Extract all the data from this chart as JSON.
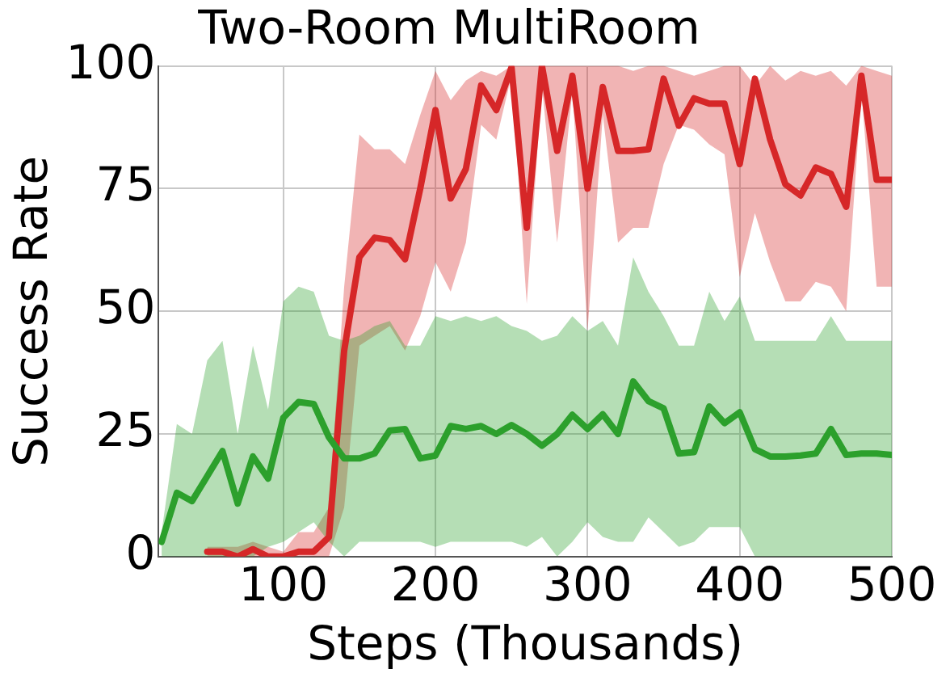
{
  "chart_data": {
    "type": "line",
    "title": "Two-Room MultiRoom",
    "xlabel": "Steps (Thousands)",
    "ylabel": "Success Rate",
    "xlim": [
      18,
      500
    ],
    "xticks": [
      100,
      200,
      300,
      400,
      500
    ],
    "ylim": [
      0,
      100
    ],
    "yticks": [
      0,
      25,
      50,
      75,
      100
    ],
    "grid": true,
    "legend": false,
    "marker": "none",
    "series": [
      {
        "color": "#2ca02c",
        "x": [
          20,
          30,
          40,
          50,
          60,
          70,
          80,
          90,
          100,
          110,
          120,
          130,
          140,
          150,
          160,
          170,
          180,
          190,
          200,
          210,
          220,
          230,
          240,
          250,
          260,
          270,
          280,
          290,
          300,
          310,
          320,
          330,
          340,
          350,
          360,
          370,
          380,
          390,
          400,
          410,
          420,
          430,
          440,
          450,
          460,
          470,
          480,
          490,
          500
        ],
        "values": [
          3,
          13,
          11.3,
          16.4,
          21.5,
          10.8,
          20.4,
          15.9,
          28.3,
          31.5,
          31.1,
          24.3,
          20,
          20,
          21,
          25.7,
          26,
          20,
          20.6,
          26.6,
          26,
          26.6,
          25,
          26.8,
          25,
          22.6,
          25,
          28.9,
          26,
          29,
          25,
          35.7,
          31.7,
          30.2,
          21,
          21.3,
          30.6,
          27.2,
          29.4,
          21.9,
          20.4,
          20.4,
          20.6,
          21,
          26,
          20.7,
          21,
          21,
          20.7
        ],
        "lower": [
          0,
          0,
          0,
          0,
          0,
          0,
          0,
          2,
          3,
          5,
          7,
          3,
          0,
          3,
          3,
          3,
          3,
          3,
          2,
          3,
          3,
          3,
          3,
          3,
          2,
          4,
          0,
          3,
          7,
          4,
          3,
          3,
          8,
          5,
          2,
          3,
          6,
          6,
          6,
          0,
          0,
          0,
          0,
          0,
          0,
          0,
          0,
          0,
          0
        ],
        "upper": [
          5,
          27,
          25,
          40,
          44,
          25,
          43,
          30,
          52,
          55,
          54,
          45,
          44,
          45,
          47,
          48,
          43,
          43,
          49,
          48,
          49,
          48,
          49,
          47,
          46,
          44,
          45,
          49,
          46,
          48,
          43,
          61,
          54,
          49,
          43,
          43,
          54,
          48,
          53,
          44,
          44,
          44,
          44,
          44,
          49,
          44,
          44,
          44,
          44
        ]
      },
      {
        "color": "#d62728",
        "x": [
          50,
          60,
          70,
          80,
          90,
          100,
          110,
          120,
          130,
          140,
          150,
          160,
          170,
          180,
          190,
          200,
          210,
          220,
          230,
          240,
          250,
          260,
          270,
          280,
          290,
          300,
          310,
          320,
          330,
          340,
          350,
          360,
          370,
          380,
          390,
          400,
          410,
          420,
          430,
          440,
          450,
          460,
          470,
          480,
          490,
          500
        ],
        "values": [
          1,
          1,
          0,
          1.5,
          0,
          0,
          1,
          1,
          4,
          42,
          61,
          65,
          64.5,
          60.6,
          75,
          91,
          73,
          79,
          96,
          91,
          99.7,
          67,
          100,
          82.7,
          98,
          75,
          95.7,
          82.7,
          82.7,
          83,
          97.4,
          87.8,
          93.4,
          92.3,
          92.3,
          80,
          97.4,
          85,
          75.9,
          73.6,
          79.3,
          78,
          71.3,
          98,
          76.8,
          76.8
        ],
        "lower": [
          0,
          0,
          0,
          0,
          0,
          0,
          0,
          0,
          0,
          10,
          43,
          45,
          47,
          42,
          49,
          60,
          54,
          64,
          88,
          85,
          98,
          51.5,
          96,
          64,
          95,
          46,
          90,
          64,
          67,
          67,
          80,
          88,
          87,
          84,
          82,
          57,
          70,
          60,
          52,
          52,
          56,
          55,
          50,
          95,
          55,
          55
        ],
        "upper": [
          2,
          2,
          2,
          3,
          2,
          1,
          5,
          5,
          10,
          55,
          86,
          83,
          83,
          80,
          90,
          99,
          93,
          97,
          99,
          98,
          100,
          100,
          100,
          100,
          100,
          100,
          100,
          100,
          99,
          100,
          100,
          99,
          98,
          99,
          100,
          100,
          96,
          100,
          97,
          99,
          98,
          99,
          96,
          100,
          99,
          98
        ]
      }
    ]
  }
}
